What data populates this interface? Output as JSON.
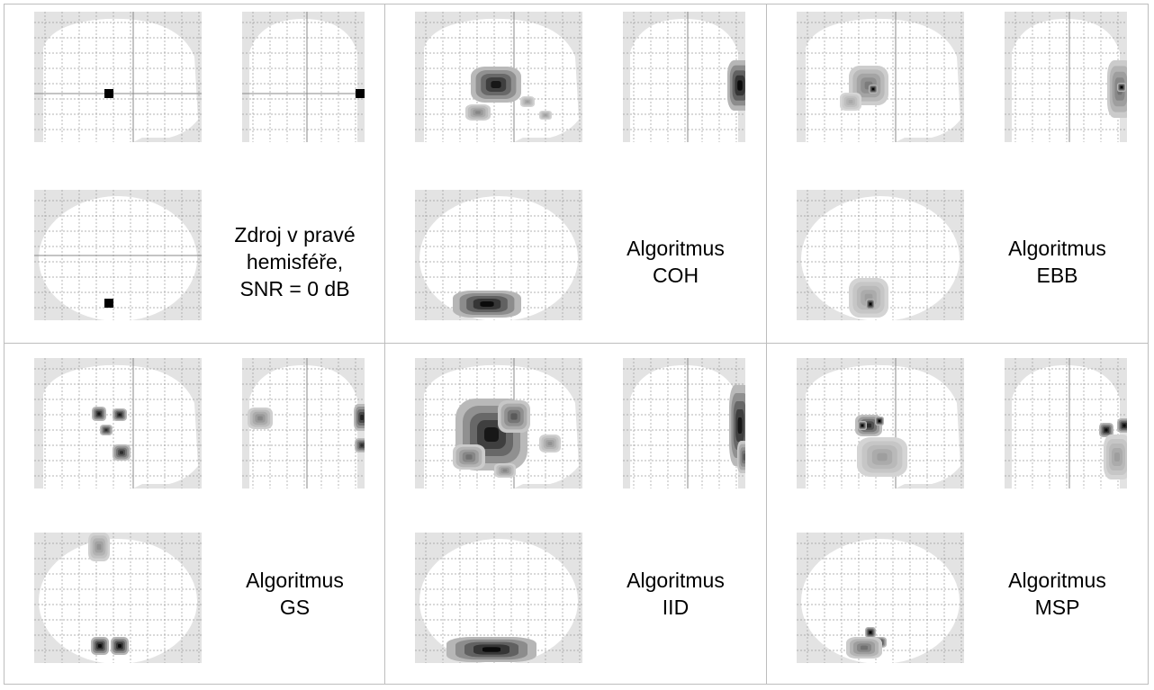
{
  "panels": [
    {
      "id": "source",
      "caption": [
        "Zdroj v pravé",
        "hemisféře,",
        "SNR = 0 dB"
      ]
    },
    {
      "id": "coh",
      "caption": [
        "Algoritmus",
        "COH"
      ]
    },
    {
      "id": "ebb",
      "caption": [
        "Algoritmus",
        "EBB"
      ]
    },
    {
      "id": "gs",
      "caption": [
        "Algoritmus",
        "GS"
      ]
    },
    {
      "id": "iid",
      "caption": [
        "Algoritmus",
        "IID"
      ]
    },
    {
      "id": "msp",
      "caption": [
        "Algoritmus",
        "MSP"
      ]
    }
  ],
  "colors": {
    "border": "#bdbdbd",
    "glass": "#e3e3e3",
    "brain": "#ffffff",
    "grid": "#9a9a9a",
    "activation": "#000000"
  }
}
